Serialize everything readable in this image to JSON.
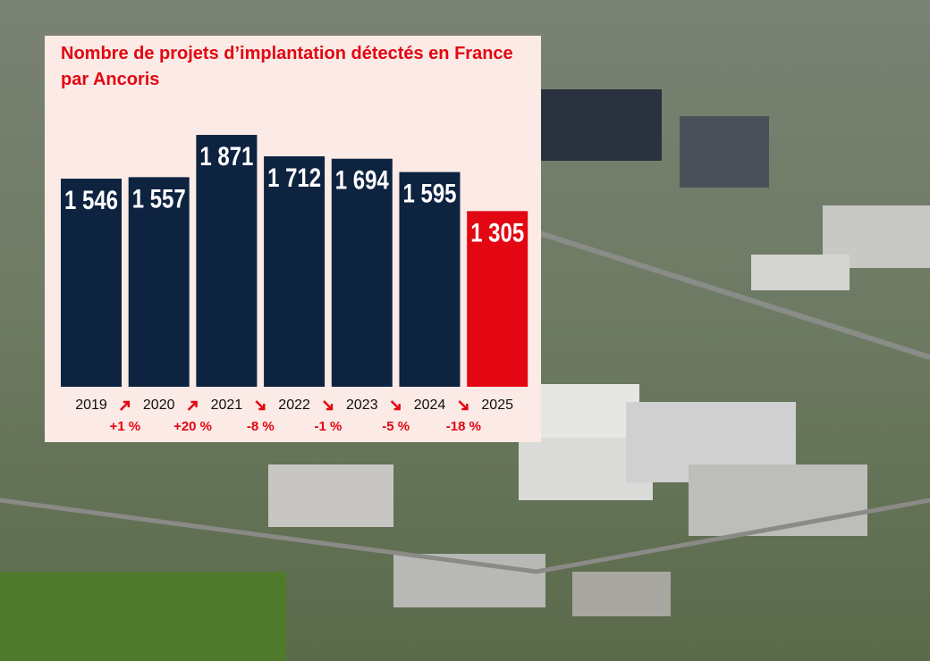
{
  "chart_data": {
    "type": "bar",
    "title": "Nombre de projets d’implantation détectés en France par Ancoris",
    "categories": [
      "2019",
      "2020",
      "2021",
      "2022",
      "2023",
      "2024",
      "2025"
    ],
    "values": [
      1546,
      1557,
      1871,
      1712,
      1694,
      1595,
      1305
    ],
    "value_labels": [
      "1 546",
      "1 557",
      "1 871",
      "1 712",
      "1 694",
      "1 595",
      "1 305"
    ],
    "colors": [
      "#0d2340",
      "#0d2340",
      "#0d2340",
      "#0d2340",
      "#0d2340",
      "#0d2340",
      "#e30613"
    ],
    "annotations": [
      "+1 %",
      "+20 %",
      "-8 %",
      "-1 %",
      "-5 %",
      "-18 %"
    ]
  }
}
